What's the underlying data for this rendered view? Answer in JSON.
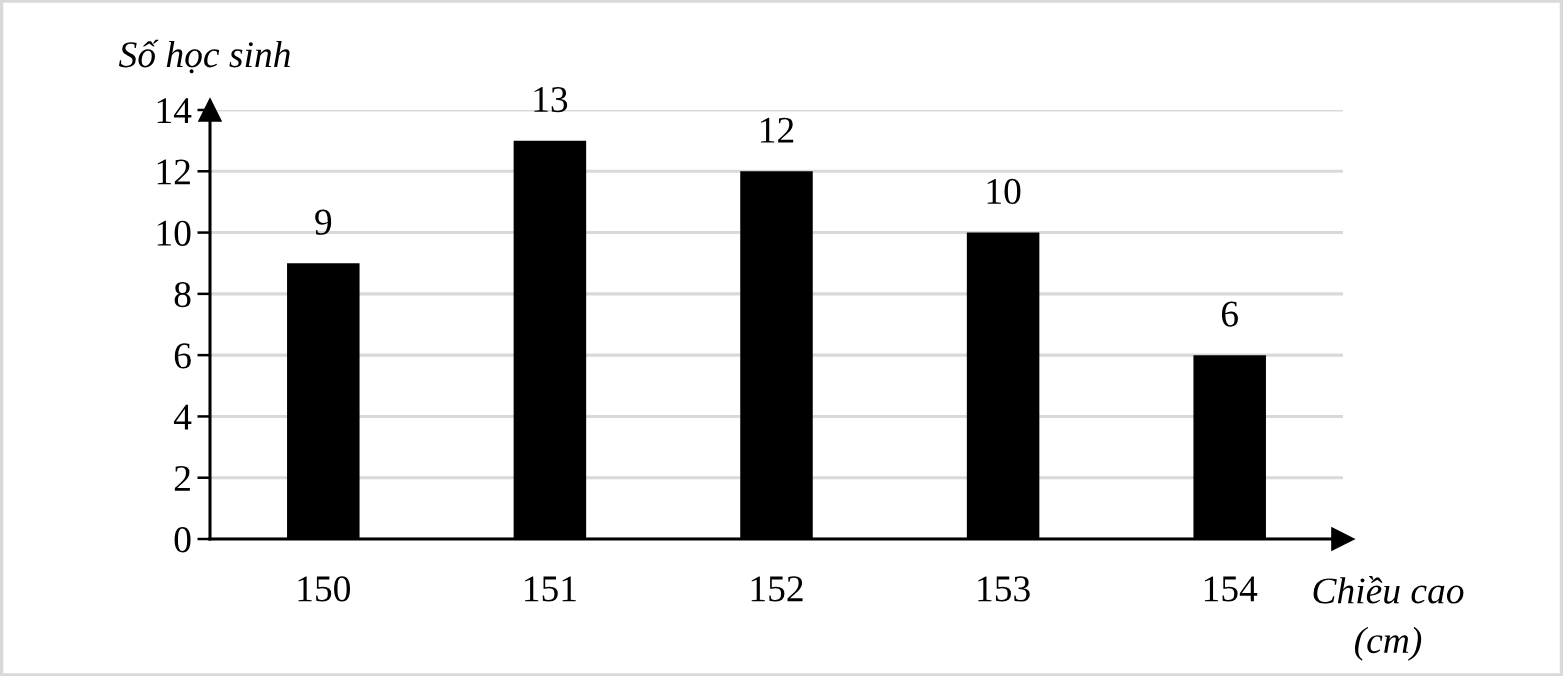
{
  "chart_data": {
    "type": "bar",
    "xlabel": "Chiều cao (cm)",
    "ylabel": "Số học sinh",
    "categories": [
      "150",
      "151",
      "152",
      "153",
      "154"
    ],
    "values": [
      9,
      13,
      12,
      10,
      6
    ],
    "color": "#000000",
    "ylim": [
      0,
      14
    ],
    "yticks": [
      0,
      2,
      4,
      6,
      8,
      10,
      12,
      14
    ],
    "grid": "y",
    "data_labels": true
  }
}
